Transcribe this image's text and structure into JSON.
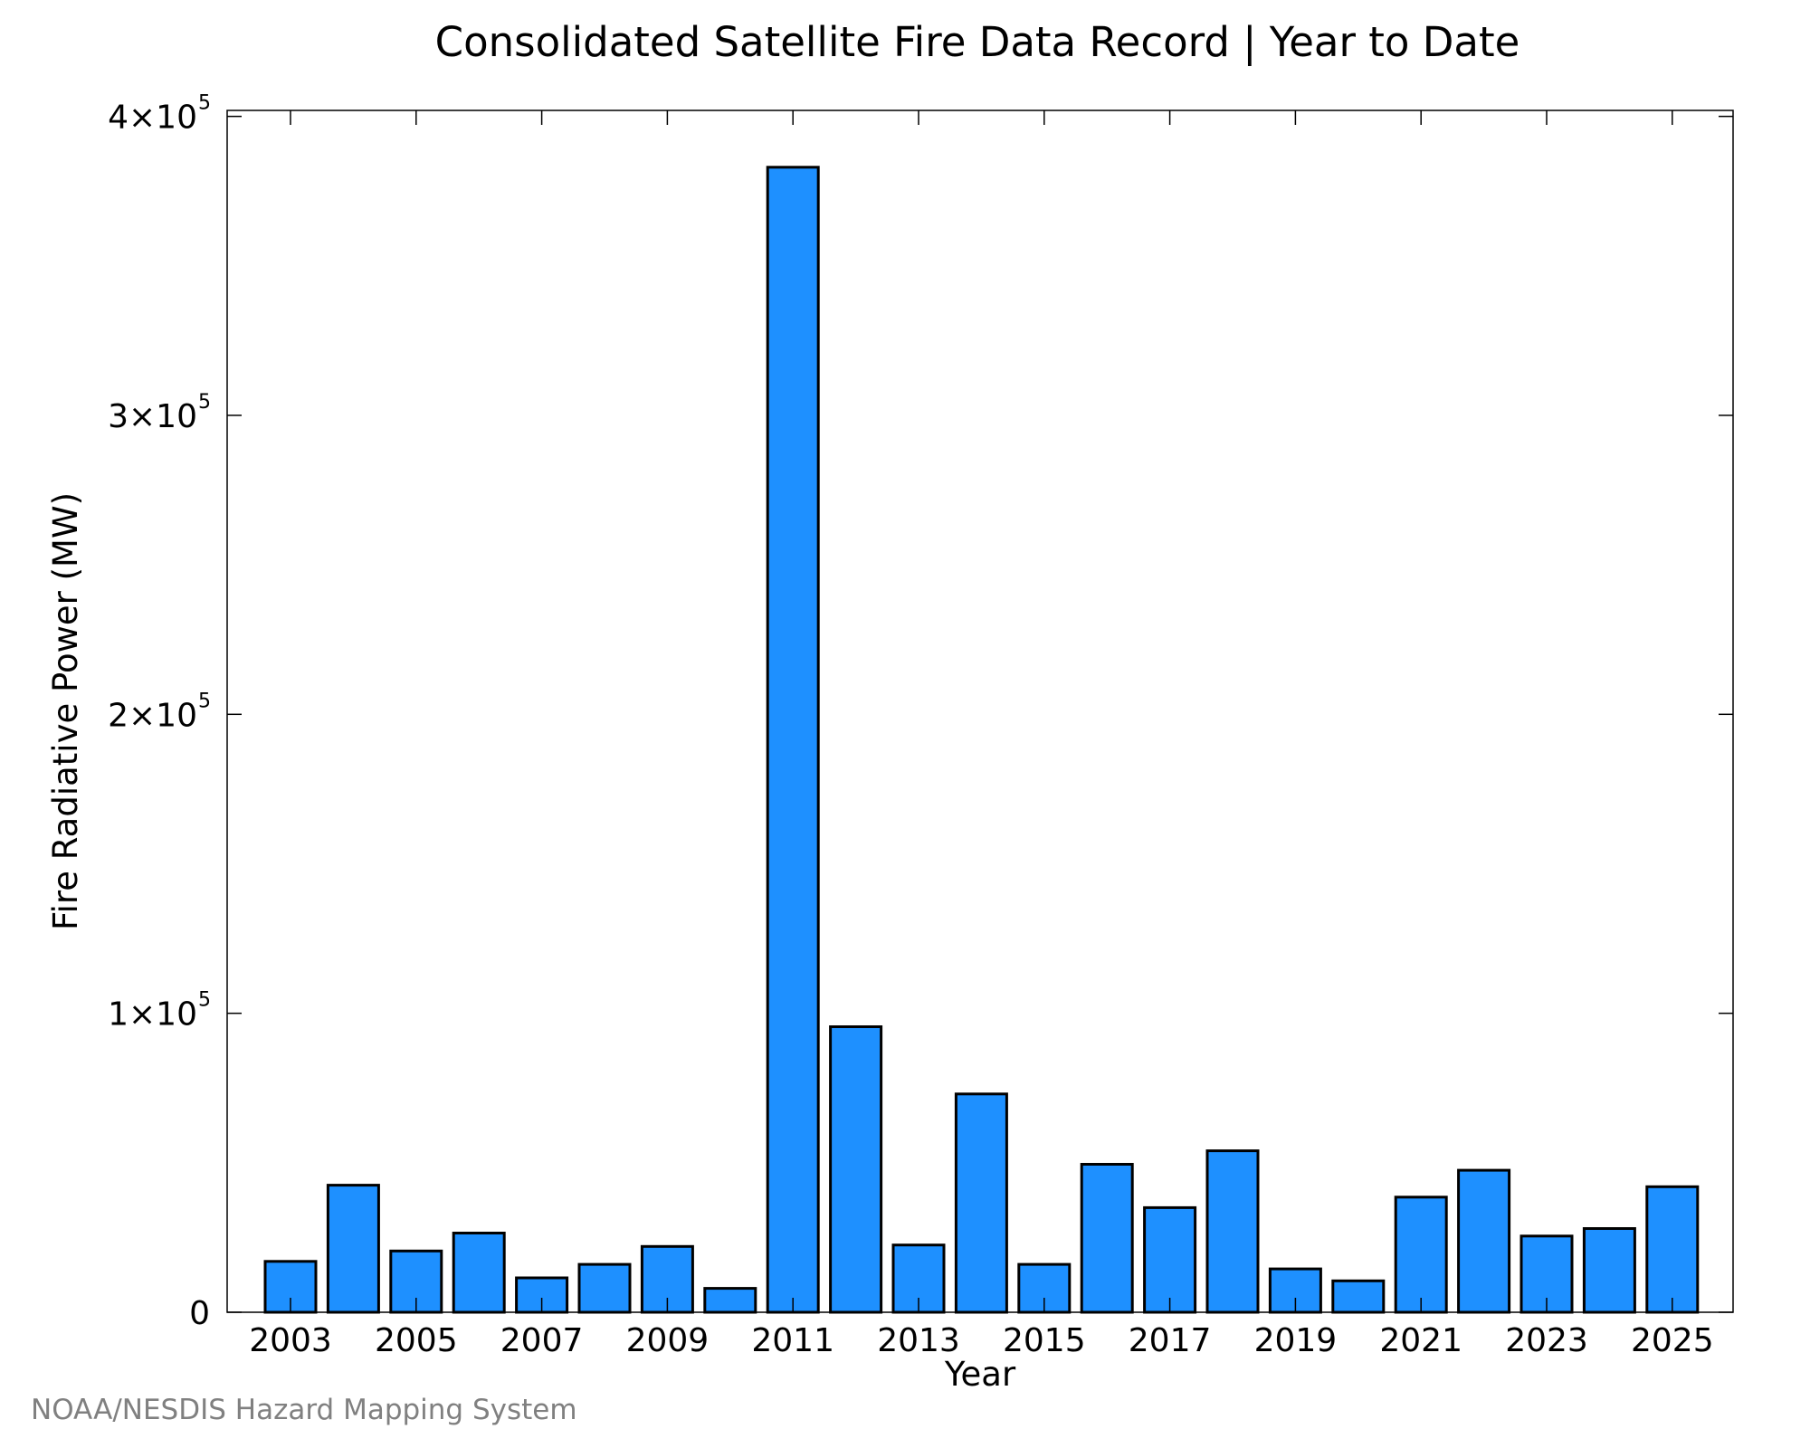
{
  "chart_data": {
    "type": "bar",
    "title": "Consolidated Satellite Fire Data Record | Year to Date",
    "xlabel": "Year",
    "ylabel": "Fire Radiative Power (MW)",
    "categories": [
      "2003",
      "2004",
      "2005",
      "2006",
      "2007",
      "2008",
      "2009",
      "2010",
      "2011",
      "2012",
      "2013",
      "2014",
      "2015",
      "2016",
      "2017",
      "2018",
      "2019",
      "2020",
      "2021",
      "2022",
      "2023",
      "2024",
      "2025"
    ],
    "values": [
      17000,
      42500,
      20500,
      26500,
      11500,
      16000,
      22000,
      8000,
      383000,
      95500,
      22500,
      73000,
      16000,
      49500,
      35000,
      54000,
      14500,
      10500,
      38500,
      47500,
      25500,
      28000,
      42000
    ],
    "x_tick_labels": [
      "2003",
      "2005",
      "2007",
      "2009",
      "2011",
      "2013",
      "2015",
      "2017",
      "2019",
      "2021",
      "2023",
      "2025"
    ],
    "y_ticks": [
      {
        "value": 0,
        "label": "0",
        "exp": ""
      },
      {
        "value": 100000,
        "label": "1×10",
        "exp": "5"
      },
      {
        "value": 200000,
        "label": "2×10",
        "exp": "5"
      },
      {
        "value": 300000,
        "label": "3×10",
        "exp": "5"
      },
      {
        "value": 400000,
        "label": "4×10",
        "exp": "5"
      }
    ],
    "ylim": [
      0,
      402000
    ],
    "grid": false,
    "bar_color": "#1e90ff",
    "bar_edge_color": "#000000"
  },
  "footer": "NOAA/NESDIS Hazard Mapping System"
}
